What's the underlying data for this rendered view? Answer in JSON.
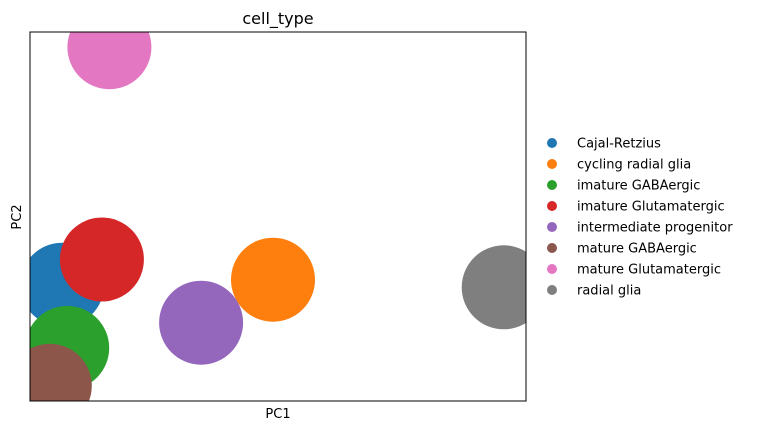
{
  "chart_data": {
    "type": "scatter",
    "title": "cell_type",
    "xlabel": "PC1",
    "ylabel": "PC2",
    "ticks_shown": false,
    "grid": false,
    "legend_position": "right",
    "xlim": [
      -1.0,
      1.0
    ],
    "ylim": [
      -0.62,
      0.84
    ],
    "series": [
      {
        "name": "Cajal-Retzius",
        "color": "#1f77b4",
        "x": -0.87,
        "y": -0.16
      },
      {
        "name": "cycling radial glia",
        "color": "#ff7f0e",
        "x": -0.02,
        "y": -0.14
      },
      {
        "name": "imature GABAergic",
        "color": "#2ca02c",
        "x": -0.85,
        "y": -0.41
      },
      {
        "name": "imature Glutamatergic",
        "color": "#d62728",
        "x": -0.71,
        "y": -0.06
      },
      {
        "name": "intermediate progenitor",
        "color": "#9467bd",
        "x": -0.31,
        "y": -0.31
      },
      {
        "name": "mature GABAergic",
        "color": "#8c564b",
        "x": -0.92,
        "y": -0.56
      },
      {
        "name": "mature Glutamatergic",
        "color": "#e377c2",
        "x": -0.68,
        "y": 0.78
      },
      {
        "name": "radial glia",
        "color": "#7f7f7f",
        "x": 0.91,
        "y": -0.17
      }
    ]
  }
}
